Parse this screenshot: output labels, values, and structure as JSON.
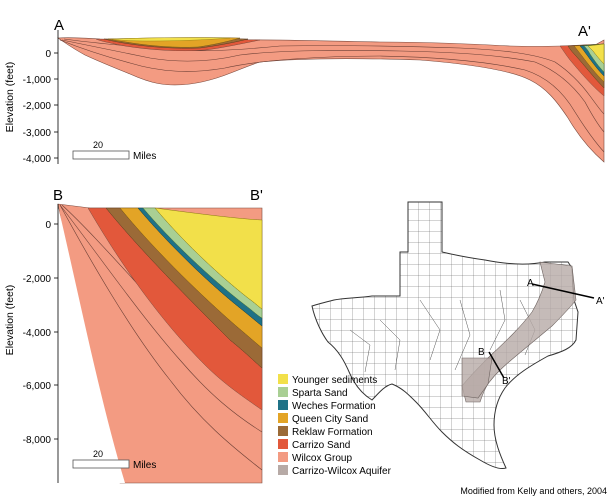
{
  "sections": {
    "top": {
      "start_label": "A",
      "end_label": "A'",
      "y_axis_label": "Elevation (feet)",
      "y_ticks": [
        "0",
        "-1,000",
        "-2,000",
        "-3,000",
        "-4,000"
      ],
      "scale_value": "20",
      "scale_unit": "Miles"
    },
    "bottom": {
      "start_label": "B",
      "end_label": "B'",
      "y_axis_label": "Elevation (feet)",
      "y_ticks": [
        "0",
        "-2,000",
        "-4,000",
        "-6,000",
        "-8,000"
      ],
      "scale_value": "20",
      "scale_unit": "Miles"
    }
  },
  "map": {
    "line_a_start": "A",
    "line_a_end": "A'",
    "line_b_start": "B",
    "line_b_end": "B'",
    "aquifer_color": "#b7aaa6"
  },
  "legend": [
    {
      "label": "Younger sediments",
      "color": "#f2e04a"
    },
    {
      "label": "Sparta Sand",
      "color": "#a9cf94"
    },
    {
      "label": "Weches Formation",
      "color": "#1f7287"
    },
    {
      "label": "Queen City Sand",
      "color": "#e3a426"
    },
    {
      "label": "Reklaw Formation",
      "color": "#9b6a37"
    },
    {
      "label": "Carrizo Sand",
      "color": "#e2583b"
    },
    {
      "label": "Wilcox Group",
      "color": "#f39b82"
    },
    {
      "label": "Carrizo-Wilcox Aquifer",
      "color": "#b7aaa6"
    }
  ],
  "credit": "Modified from Kelly and others, 2004"
}
